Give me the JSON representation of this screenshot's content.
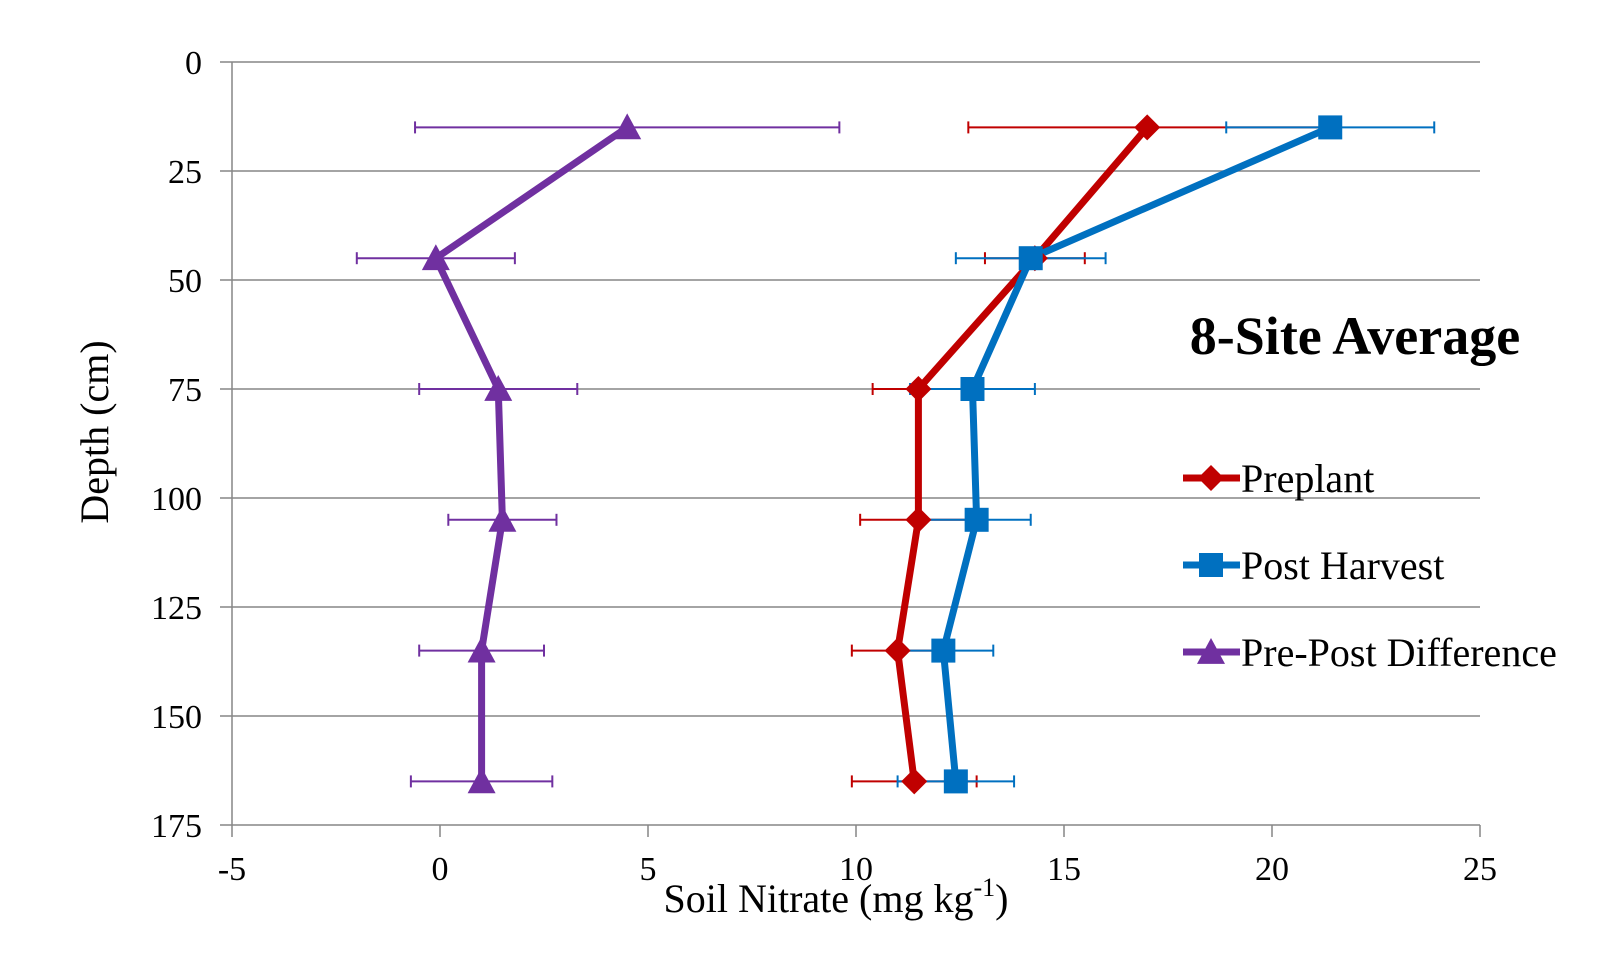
{
  "chart_data": {
    "type": "line",
    "title": "8-Site Average",
    "xlabel": "Soil Nitrate (mg kg",
    "xlabel_sup": "-1",
    "xlabel_suffix": ")",
    "ylabel": "Depth (cm)",
    "xlim": [
      -5,
      25
    ],
    "ylim": [
      0,
      175
    ],
    "y_inverted": true,
    "x_ticks": [
      "-5",
      "0",
      "5",
      "10",
      "15",
      "20",
      "25"
    ],
    "y_ticks": [
      "0",
      "25",
      "50",
      "75",
      "100",
      "125",
      "150",
      "175"
    ],
    "grid": "horizontal",
    "legend_position": "right",
    "depths": [
      15,
      45,
      75,
      105,
      135,
      165
    ],
    "series": [
      {
        "name": "Preplant",
        "color": "#c00000",
        "marker": "diamond",
        "x": [
          17.0,
          14.3,
          11.5,
          11.5,
          11.0,
          11.4
        ],
        "error": [
          4.3,
          1.2,
          1.1,
          1.4,
          1.1,
          1.5
        ]
      },
      {
        "name": "Post Harvest",
        "color": "#0070c0",
        "marker": "square",
        "x": [
          21.4,
          14.2,
          12.8,
          12.9,
          12.1,
          12.4
        ],
        "error": [
          2.5,
          1.8,
          1.5,
          1.3,
          1.2,
          1.4
        ]
      },
      {
        "name": "Pre-Post Difference",
        "color": "#7030a0",
        "marker": "triangle",
        "x": [
          4.5,
          -0.1,
          1.4,
          1.5,
          1.0,
          1.0
        ],
        "error": [
          5.1,
          1.9,
          1.9,
          1.3,
          1.5,
          1.7
        ]
      }
    ]
  }
}
